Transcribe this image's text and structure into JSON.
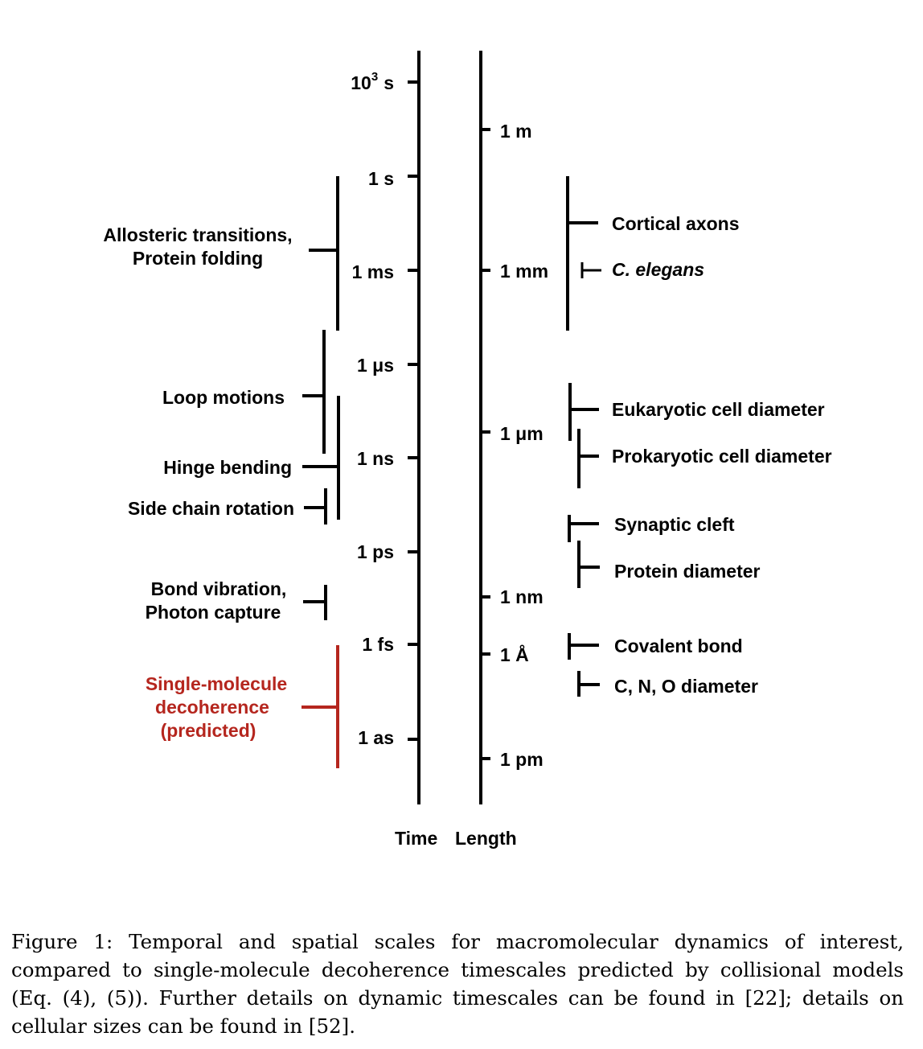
{
  "time_ticks": [
    {
      "base": "10",
      "exp": "3",
      "unit": "s"
    },
    {
      "label": "1 s"
    },
    {
      "label": "1 ms"
    },
    {
      "label": "1 μs"
    },
    {
      "label": "1 ns"
    },
    {
      "label": "1 ps"
    },
    {
      "label": "1 fs"
    },
    {
      "label": "1 as"
    }
  ],
  "length_ticks": [
    "1 m",
    "1 mm",
    "1 μm",
    "1 nm",
    "1 Å",
    "1 pm"
  ],
  "axis_labels": {
    "time": "Time",
    "length": "Length"
  },
  "time_processes": {
    "allosteric": [
      "Allosteric transitions,",
      "Protein folding"
    ],
    "loop": "Loop motions",
    "hinge": "Hinge bending",
    "side_chain": "Side chain rotation",
    "bond": [
      "Bond vibration,",
      "Photon capture"
    ],
    "decoherence": [
      "Single-molecule",
      "decoherence",
      "(predicted)"
    ]
  },
  "length_objects": {
    "cortical": "Cortical axons",
    "elegans": "C. elegans",
    "eukaryotic": "Eukaryotic cell diameter",
    "prokaryotic": "Prokaryotic cell diameter",
    "synaptic": "Synaptic cleft",
    "protein": "Protein diameter",
    "covalent": "Covalent bond",
    "cno": "C, N, O diameter"
  },
  "colors": {
    "highlight": "#b5261e",
    "ink": "#000000"
  },
  "caption": "Figure 1: Temporal and spatial scales for macromolecular dynamics of interest, compared to single-molecule decoherence timescales predicted by collisional models (Eq. (4), (5)). Further details on dynamic timescales can be found in [22]; details on cellular sizes can be found in [52]."
}
